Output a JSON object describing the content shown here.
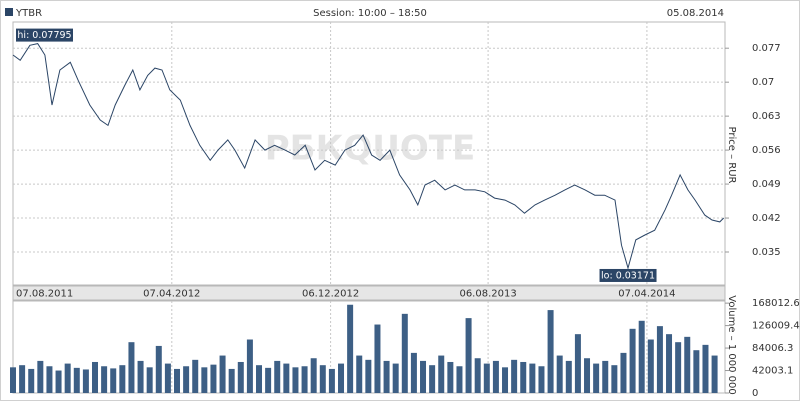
{
  "header": {
    "session": "Session: 10:00 – 18:50",
    "date": "05.08.2014"
  },
  "chart_data": [
    {
      "type": "line",
      "y_label": "Price – RUR",
      "watermark": "РБКQUOTE",
      "grid": true,
      "x": [
        0,
        11,
        26,
        38,
        49,
        60,
        72,
        88,
        100,
        118,
        134,
        146,
        157,
        172,
        184,
        195,
        207,
        218,
        229,
        241,
        257,
        272,
        287,
        303,
        315,
        330,
        341,
        356,
        372,
        387,
        402,
        418,
        433,
        449,
        464,
        479,
        495,
        510,
        525,
        538,
        551,
        564,
        579,
        594,
        610,
        622,
        633,
        648,
        664,
        679,
        694,
        710,
        725,
        740,
        756,
        771,
        786,
        802,
        817,
        833,
        848,
        863,
        879,
        894,
        909,
        925,
        935,
        945,
        957,
        971,
        986,
        1002,
        1012,
        1025,
        1037,
        1048,
        1063,
        1074,
        1086,
        1092
      ],
      "series": [
        {
          "name": "YTBR",
          "color": "#2b4566",
          "values": [
            0.0756,
            0.0745,
            0.0776,
            0.07795,
            0.0756,
            0.0653,
            0.0725,
            0.0741,
            0.0704,
            0.0653,
            0.0622,
            0.0611,
            0.0653,
            0.0694,
            0.0725,
            0.0684,
            0.0714,
            0.0729,
            0.0725,
            0.0684,
            0.0663,
            0.0611,
            0.057,
            0.0539,
            0.056,
            0.0581,
            0.056,
            0.0523,
            0.0581,
            0.056,
            0.057,
            0.056,
            0.055,
            0.057,
            0.0519,
            0.0539,
            0.0529,
            0.056,
            0.057,
            0.0591,
            0.055,
            0.0539,
            0.056,
            0.0509,
            0.0478,
            0.0447,
            0.0488,
            0.0498,
            0.0478,
            0.0488,
            0.0478,
            0.0478,
            0.0474,
            0.0461,
            0.0457,
            0.0447,
            0.043,
            0.0447,
            0.0457,
            0.0467,
            0.0478,
            0.0488,
            0.0478,
            0.0467,
            0.0467,
            0.0457,
            0.0364,
            0.03171,
            0.0375,
            0.0385,
            0.0395,
            0.0437,
            0.0467,
            0.0509,
            0.0478,
            0.0457,
            0.0426,
            0.0416,
            0.0412,
            0.042
          ]
        }
      ],
      "annotations": [
        {
          "text": "hi: 0.07795",
          "value": 0.07795
        },
        {
          "text": "lo: 0.03171",
          "value": 0.03171
        }
      ],
      "xlim": [
        0,
        1094
      ],
      "ylim": [
        0.0282,
        0.0824
      ],
      "yticks": [
        0.077,
        {
          "value": 0.07,
          "label": "0.07"
        },
        0.063,
        0.056,
        0.049,
        0.042,
        0.035
      ],
      "xticks": [
        {
          "value": 0,
          "label": "07.08.2011"
        },
        {
          "value": 244,
          "label": "07.04.2012"
        },
        {
          "value": 488,
          "label": "06.12.2012"
        },
        {
          "value": 730,
          "label": "06.08.2013"
        },
        {
          "value": 974,
          "label": "07.04.2014"
        }
      ]
    },
    {
      "type": "bar",
      "y_label": "Volume – 1 000 000",
      "color": "#3d5f85",
      "grid": true,
      "x": [
        0,
        14,
        28,
        42,
        56,
        70,
        84,
        98,
        112,
        126,
        140,
        154,
        168,
        182,
        196,
        210,
        224,
        238,
        252,
        266,
        280,
        294,
        308,
        322,
        336,
        350,
        364,
        378,
        392,
        406,
        420,
        434,
        448,
        462,
        476,
        490,
        504,
        518,
        532,
        546,
        560,
        574,
        588,
        602,
        616,
        630,
        644,
        658,
        672,
        686,
        700,
        714,
        728,
        742,
        756,
        770,
        784,
        798,
        812,
        826,
        840,
        854,
        868,
        882,
        896,
        910,
        924,
        938,
        952,
        966,
        980,
        994,
        1008,
        1022,
        1036,
        1050,
        1064,
        1078
      ],
      "values": [
        48000,
        52000,
        45000,
        60000,
        50000,
        42000,
        55000,
        47000,
        44000,
        58000,
        50000,
        46000,
        52000,
        95000,
        60000,
        48000,
        88000,
        55000,
        45000,
        50000,
        62000,
        48000,
        53000,
        70000,
        45000,
        58000,
        100000,
        52000,
        47000,
        60000,
        55000,
        48000,
        50000,
        65000,
        52000,
        45000,
        55000,
        165000,
        70000,
        62000,
        128000,
        60000,
        55000,
        148000,
        75000,
        60000,
        52000,
        70000,
        58000,
        50000,
        140000,
        65000,
        55000,
        60000,
        48000,
        62000,
        58000,
        55000,
        50000,
        155000,
        70000,
        60000,
        110000,
        65000,
        55000,
        60000,
        52000,
        75000,
        120000,
        135000,
        100000,
        125000,
        110000,
        95000,
        105000,
        80000,
        90000,
        70000
      ],
      "xlim": [
        0,
        1094
      ],
      "ylim": [
        0,
        172000
      ],
      "yticks": [
        168012.6,
        126009.4,
        84006.3,
        42003.1,
        0
      ]
    }
  ]
}
